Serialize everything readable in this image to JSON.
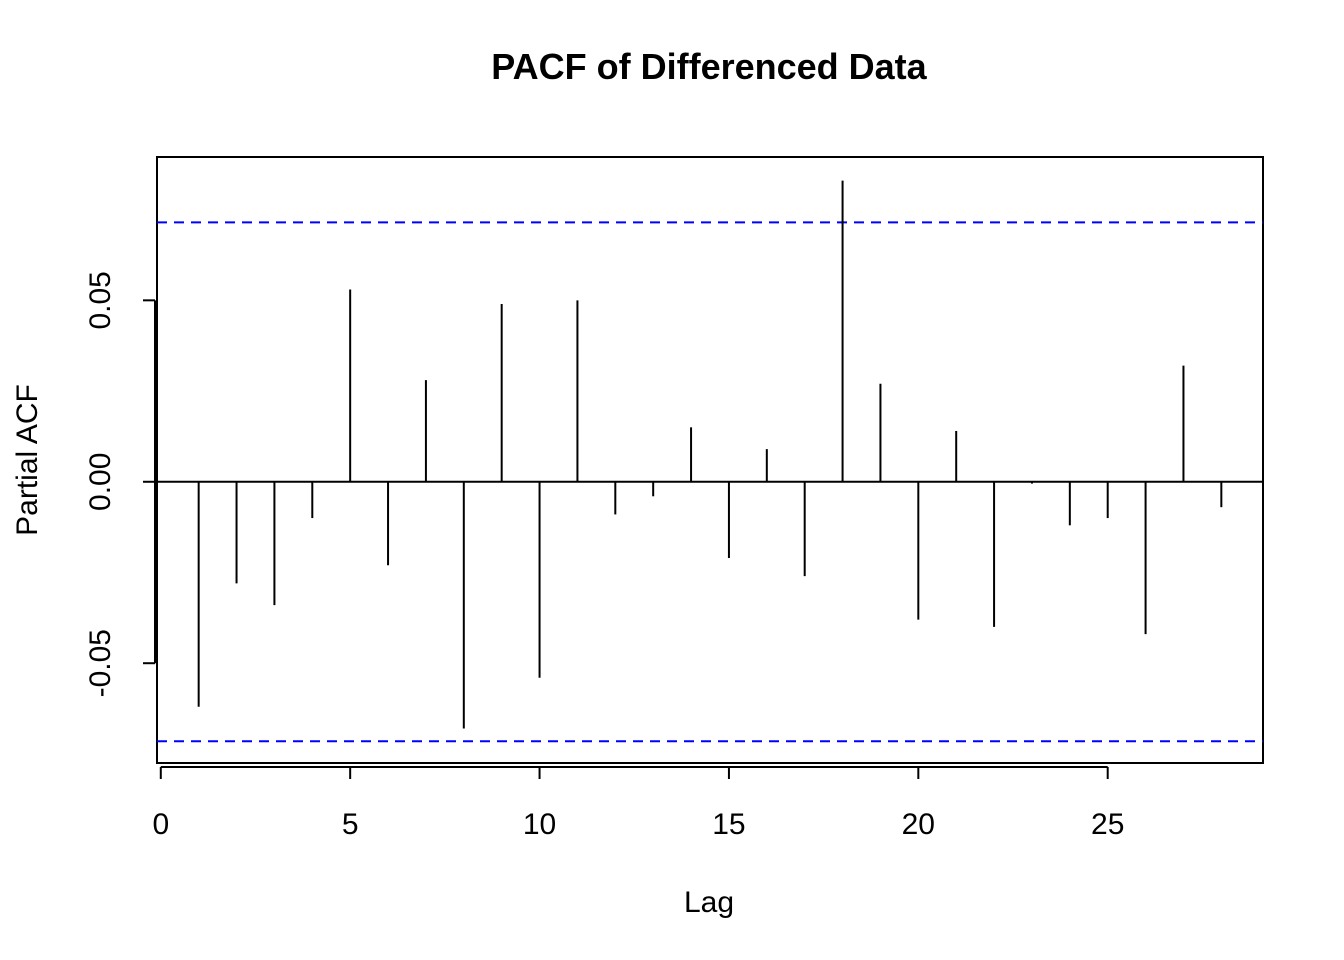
{
  "chart_data": {
    "type": "bar",
    "title": "PACF of Differenced Data",
    "xlabel": "Lag",
    "ylabel": "Partial ACF",
    "x": [
      1,
      2,
      3,
      4,
      5,
      6,
      7,
      8,
      9,
      10,
      11,
      12,
      13,
      14,
      15,
      16,
      17,
      18,
      19,
      20,
      21,
      22,
      23,
      24,
      25,
      26,
      27,
      28
    ],
    "values": [
      -0.062,
      -0.028,
      -0.034,
      -0.01,
      0.053,
      -0.023,
      0.028,
      -0.068,
      0.049,
      -0.054,
      0.05,
      -0.009,
      -0.004,
      0.015,
      -0.021,
      0.009,
      -0.026,
      0.083,
      0.027,
      -0.038,
      0.014,
      -0.04,
      -0.0005,
      -0.012,
      -0.01,
      -0.042,
      0.032,
      -0.007
    ],
    "confidence_bound": 0.0715,
    "xlim": [
      -0.1,
      29.1
    ],
    "ylim": [
      -0.0775,
      0.0895
    ],
    "x_ticks": [
      "0",
      "5",
      "10",
      "15",
      "20",
      "25"
    ],
    "y_ticks": [
      "-0.05",
      "0.00",
      "0.05"
    ],
    "line_color": "#000000",
    "bound_color": "#0000ff",
    "grid": false,
    "legend": "none"
  }
}
